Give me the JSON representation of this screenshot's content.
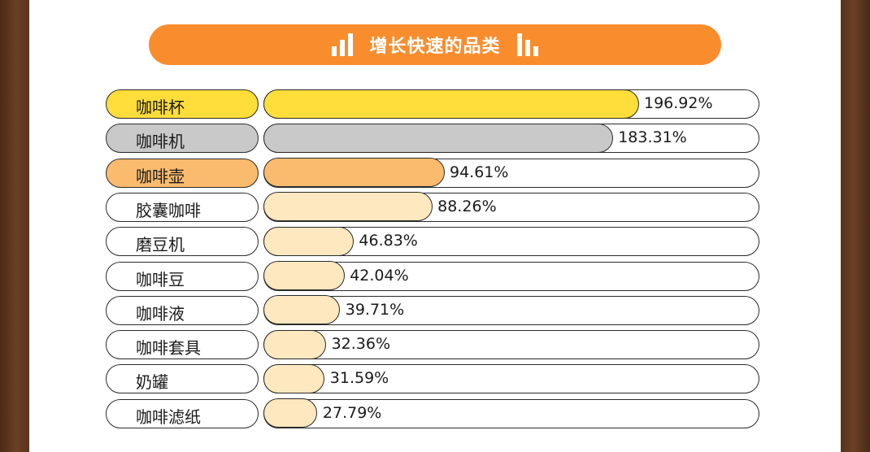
{
  "title": "增长快速的品类",
  "colors": {
    "accent": "#f98d2e",
    "gold": "#ffdd3a",
    "silver": "#c9c9c9",
    "bronze": "#fbbb6e",
    "base": "#fde8bf"
  },
  "chart_data": {
    "type": "bar",
    "orientation": "horizontal",
    "categories": [
      "咖啡杯",
      "咖啡机",
      "咖啡壶",
      "胶囊咖啡",
      "磨豆机",
      "咖啡豆",
      "咖啡液",
      "咖啡套具",
      "奶罐",
      "咖啡滤纸"
    ],
    "values": [
      196.92,
      183.31,
      94.61,
      88.26,
      46.83,
      42.04,
      39.71,
      32.36,
      31.59,
      27.79
    ],
    "value_labels": [
      "196.92%",
      "183.31%",
      "94.61%",
      "88.26%",
      "46.83%",
      "42.04%",
      "39.71%",
      "32.36%",
      "31.59%",
      "27.79%"
    ],
    "title": "增长快速的品类",
    "unit": "%",
    "xlim": [
      0,
      196.92
    ]
  }
}
